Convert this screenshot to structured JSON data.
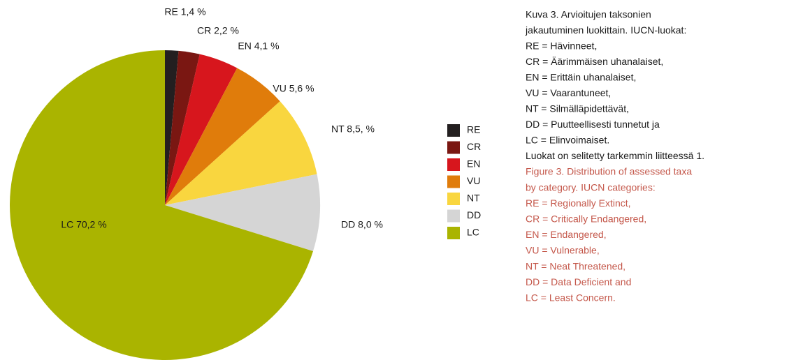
{
  "chart_data": {
    "type": "pie",
    "categories": [
      "RE",
      "CR",
      "EN",
      "VU",
      "NT",
      "DD",
      "LC"
    ],
    "values": [
      1.4,
      2.2,
      4.1,
      5.6,
      8.5,
      8.0,
      70.2
    ],
    "value_labels": [
      "RE 1,4 %",
      "CR 2,2 %",
      "EN 4,1 %",
      "VU 5,6 %",
      "NT 8,5, %",
      "DD 8,0 %",
      "LC 70,2 %"
    ],
    "colors": [
      "#231f20",
      "#7a1712",
      "#d7161d",
      "#e07c0b",
      "#f9d63f",
      "#d5d5d5",
      "#aab400"
    ],
    "legend": "right"
  },
  "caption_fi": [
    "Kuva 3. Arvioitujen taksonien",
    "jakautuminen luokittain. IUCN-luokat:",
    "RE = Hävinneet,",
    "CR = Äärimmäisen uhanalaiset,",
    "EN = Erittäin uhanalaiset,",
    "VU = Vaarantuneet,",
    "NT = Silmälläpidettävät,",
    "DD = Puutteellisesti tunnetut ja",
    "LC = Elinvoimaiset.",
    "Luokat on selitetty tarkemmin liitteessä 1."
  ],
  "caption_en": [
    "Figure 3. Distribution of assessed taxa",
    "by category. IUCN categories:",
    "RE = Regionally Extinct,",
    "CR = Critically Endangered,",
    "EN = Endangered,",
    "VU = Vulnerable,",
    "NT = Neat Threatened,",
    "DD = Data Deficient and",
    "LC = Least Concern."
  ]
}
